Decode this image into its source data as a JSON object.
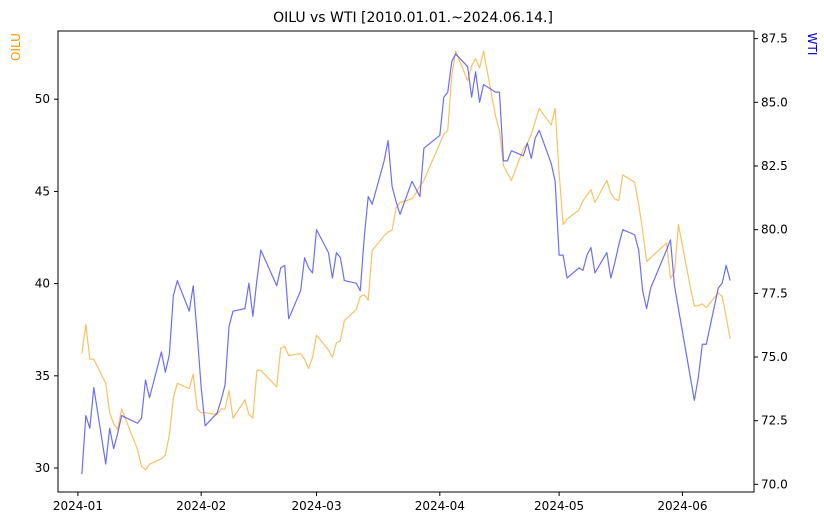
{
  "chart_data": {
    "type": "line",
    "title": "OILU vs WTI [2010.01.01.~2024.06.14.]",
    "xlabel": "",
    "x_ticks": [
      "2024-01",
      "2024-02",
      "2024-03",
      "2024-04",
      "2024-05",
      "2024-06"
    ],
    "x_range": [
      "2023-12-27",
      "2024-06-19"
    ],
    "left_axis": {
      "label": "OILU",
      "color": "#ff9900",
      "ylim": [
        28.7,
        53.7
      ],
      "ticks": [
        30,
        35,
        40,
        45,
        50
      ]
    },
    "right_axis": {
      "label": "WTI",
      "color": "#0000cc",
      "ylim": [
        69.7,
        87.8
      ],
      "ticks": [
        70.0,
        72.5,
        75.0,
        77.5,
        80.0,
        82.5,
        85.0,
        87.5
      ]
    },
    "grid": false,
    "series": [
      {
        "name": "OILU",
        "axis": "left",
        "color": "#f5a623",
        "points": [
          [
            "2024-01-02",
            36.2
          ],
          [
            "2024-01-03",
            37.8
          ],
          [
            "2024-01-04",
            35.9
          ],
          [
            "2024-01-05",
            35.9
          ],
          [
            "2024-01-08",
            34.6
          ],
          [
            "2024-01-09",
            33.0
          ],
          [
            "2024-01-10",
            32.4
          ],
          [
            "2024-01-11",
            32.1
          ],
          [
            "2024-01-12",
            33.2
          ],
          [
            "2024-01-16",
            31.0
          ],
          [
            "2024-01-17",
            30.1
          ],
          [
            "2024-01-18",
            29.9
          ],
          [
            "2024-01-19",
            30.2
          ],
          [
            "2024-01-22",
            30.5
          ],
          [
            "2024-01-23",
            30.7
          ],
          [
            "2024-01-24",
            31.8
          ],
          [
            "2024-01-25",
            33.8
          ],
          [
            "2024-01-26",
            34.6
          ],
          [
            "2024-01-29",
            34.3
          ],
          [
            "2024-01-30",
            35.1
          ],
          [
            "2024-01-31",
            33.2
          ],
          [
            "2024-02-01",
            33.0
          ],
          [
            "2024-02-02",
            33.0
          ],
          [
            "2024-02-05",
            32.9
          ],
          [
            "2024-02-06",
            33.2
          ],
          [
            "2024-02-07",
            33.2
          ],
          [
            "2024-02-08",
            34.2
          ],
          [
            "2024-02-09",
            32.7
          ],
          [
            "2024-02-12",
            33.7
          ],
          [
            "2024-02-13",
            32.9
          ],
          [
            "2024-02-14",
            32.7
          ],
          [
            "2024-02-15",
            35.3
          ],
          [
            "2024-02-16",
            35.3
          ],
          [
            "2024-02-20",
            34.4
          ],
          [
            "2024-02-21",
            36.5
          ],
          [
            "2024-02-22",
            36.6
          ],
          [
            "2024-02-23",
            36.1
          ],
          [
            "2024-02-26",
            36.2
          ],
          [
            "2024-02-27",
            35.9
          ],
          [
            "2024-02-28",
            35.4
          ],
          [
            "2024-02-29",
            36.0
          ],
          [
            "2024-03-01",
            37.2
          ],
          [
            "2024-03-04",
            36.4
          ],
          [
            "2024-03-05",
            36.0
          ],
          [
            "2024-03-06",
            36.8
          ],
          [
            "2024-03-07",
            36.9
          ],
          [
            "2024-03-08",
            38.0
          ],
          [
            "2024-03-11",
            38.6
          ],
          [
            "2024-03-12",
            39.3
          ],
          [
            "2024-03-13",
            39.4
          ],
          [
            "2024-03-14",
            39.1
          ],
          [
            "2024-03-15",
            41.8
          ],
          [
            "2024-03-18",
            42.6
          ],
          [
            "2024-03-19",
            42.8
          ],
          [
            "2024-03-20",
            42.9
          ],
          [
            "2024-03-21",
            44.1
          ],
          [
            "2024-03-22",
            44.4
          ],
          [
            "2024-03-25",
            44.6
          ],
          [
            "2024-03-26",
            44.9
          ],
          [
            "2024-03-27",
            45.3
          ],
          [
            "2024-03-28",
            45.6
          ],
          [
            "2024-04-01",
            47.6
          ],
          [
            "2024-04-02",
            48.1
          ],
          [
            "2024-04-03",
            48.3
          ],
          [
            "2024-04-04",
            51.3
          ],
          [
            "2024-04-05",
            52.6
          ],
          [
            "2024-04-08",
            51.0
          ],
          [
            "2024-04-09",
            51.8
          ],
          [
            "2024-04-10",
            52.2
          ],
          [
            "2024-04-11",
            51.7
          ],
          [
            "2024-04-12",
            52.6
          ],
          [
            "2024-04-15",
            49.1
          ],
          [
            "2024-04-16",
            48.3
          ],
          [
            "2024-04-17",
            46.4
          ],
          [
            "2024-04-18",
            46.0
          ],
          [
            "2024-04-19",
            45.6
          ],
          [
            "2024-04-22",
            47.3
          ],
          [
            "2024-04-23",
            47.6
          ],
          [
            "2024-04-24",
            48.1
          ],
          [
            "2024-04-25",
            48.8
          ],
          [
            "2024-04-26",
            49.5
          ],
          [
            "2024-04-29",
            48.6
          ],
          [
            "2024-04-30",
            49.5
          ],
          [
            "2024-05-01",
            46.0
          ],
          [
            "2024-05-02",
            43.2
          ],
          [
            "2024-05-03",
            43.5
          ],
          [
            "2024-05-06",
            44.0
          ],
          [
            "2024-05-07",
            44.5
          ],
          [
            "2024-05-08",
            44.8
          ],
          [
            "2024-05-09",
            45.1
          ],
          [
            "2024-05-10",
            44.4
          ],
          [
            "2024-05-13",
            45.6
          ],
          [
            "2024-05-14",
            44.9
          ],
          [
            "2024-05-15",
            44.6
          ],
          [
            "2024-05-16",
            44.5
          ],
          [
            "2024-05-17",
            45.9
          ],
          [
            "2024-05-20",
            45.5
          ],
          [
            "2024-05-21",
            44.3
          ],
          [
            "2024-05-22",
            42.9
          ],
          [
            "2024-05-23",
            41.2
          ],
          [
            "2024-05-24",
            41.4
          ],
          [
            "2024-05-28",
            42.2
          ],
          [
            "2024-05-29",
            40.3
          ],
          [
            "2024-05-30",
            40.6
          ],
          [
            "2024-05-31",
            43.2
          ],
          [
            "2024-06-03",
            39.8
          ],
          [
            "2024-06-04",
            38.8
          ],
          [
            "2024-06-05",
            38.8
          ],
          [
            "2024-06-06",
            38.9
          ],
          [
            "2024-06-07",
            38.7
          ],
          [
            "2024-06-10",
            39.5
          ],
          [
            "2024-06-11",
            39.3
          ],
          [
            "2024-06-12",
            38.2
          ],
          [
            "2024-06-13",
            37.0
          ]
        ]
      },
      {
        "name": "WTI",
        "axis": "right",
        "color": "#5555ee",
        "points": [
          [
            "2024-01-02",
            70.4
          ],
          [
            "2024-01-03",
            72.7
          ],
          [
            "2024-01-04",
            72.2
          ],
          [
            "2024-01-05",
            73.8
          ],
          [
            "2024-01-08",
            70.8
          ],
          [
            "2024-01-09",
            72.2
          ],
          [
            "2024-01-10",
            71.4
          ],
          [
            "2024-01-11",
            72.0
          ],
          [
            "2024-01-12",
            72.7
          ],
          [
            "2024-01-16",
            72.4
          ],
          [
            "2024-01-17",
            72.6
          ],
          [
            "2024-01-18",
            74.1
          ],
          [
            "2024-01-19",
            73.4
          ],
          [
            "2024-01-22",
            75.2
          ],
          [
            "2024-01-23",
            74.4
          ],
          [
            "2024-01-24",
            75.1
          ],
          [
            "2024-01-25",
            77.4
          ],
          [
            "2024-01-26",
            78.0
          ],
          [
            "2024-01-29",
            76.8
          ],
          [
            "2024-01-30",
            77.8
          ],
          [
            "2024-01-31",
            75.9
          ],
          [
            "2024-02-01",
            73.8
          ],
          [
            "2024-02-02",
            72.3
          ],
          [
            "2024-02-05",
            72.8
          ],
          [
            "2024-02-06",
            73.3
          ],
          [
            "2024-02-07",
            73.9
          ],
          [
            "2024-02-08",
            76.2
          ],
          [
            "2024-02-09",
            76.8
          ],
          [
            "2024-02-12",
            76.9
          ],
          [
            "2024-02-13",
            77.9
          ],
          [
            "2024-02-14",
            76.6
          ],
          [
            "2024-02-15",
            78.0
          ],
          [
            "2024-02-16",
            79.2
          ],
          [
            "2024-02-20",
            77.8
          ],
          [
            "2024-02-21",
            78.5
          ],
          [
            "2024-02-22",
            78.6
          ],
          [
            "2024-02-23",
            76.5
          ],
          [
            "2024-02-26",
            77.6
          ],
          [
            "2024-02-27",
            78.9
          ],
          [
            "2024-02-28",
            78.5
          ],
          [
            "2024-02-29",
            78.3
          ],
          [
            "2024-03-01",
            80.0
          ],
          [
            "2024-03-04",
            79.1
          ],
          [
            "2024-03-05",
            78.1
          ],
          [
            "2024-03-06",
            79.1
          ],
          [
            "2024-03-07",
            78.9
          ],
          [
            "2024-03-08",
            78.0
          ],
          [
            "2024-03-11",
            77.9
          ],
          [
            "2024-03-12",
            77.6
          ],
          [
            "2024-03-13",
            79.7
          ],
          [
            "2024-03-14",
            81.3
          ],
          [
            "2024-03-15",
            81.0
          ],
          [
            "2024-03-18",
            82.7
          ],
          [
            "2024-03-19",
            83.5
          ],
          [
            "2024-03-20",
            81.7
          ],
          [
            "2024-03-21",
            81.1
          ],
          [
            "2024-03-22",
            80.6
          ],
          [
            "2024-03-25",
            81.9
          ],
          [
            "2024-03-26",
            81.6
          ],
          [
            "2024-03-27",
            81.3
          ],
          [
            "2024-03-28",
            83.2
          ],
          [
            "2024-04-01",
            83.7
          ],
          [
            "2024-04-02",
            85.2
          ],
          [
            "2024-04-03",
            85.4
          ],
          [
            "2024-04-04",
            86.6
          ],
          [
            "2024-04-05",
            86.9
          ],
          [
            "2024-04-08",
            86.4
          ],
          [
            "2024-04-09",
            85.2
          ],
          [
            "2024-04-10",
            86.2
          ],
          [
            "2024-04-11",
            85.0
          ],
          [
            "2024-04-12",
            85.7
          ],
          [
            "2024-04-15",
            85.4
          ],
          [
            "2024-04-16",
            85.4
          ],
          [
            "2024-04-17",
            82.7
          ],
          [
            "2024-04-18",
            82.7
          ],
          [
            "2024-04-19",
            83.1
          ],
          [
            "2024-04-22",
            82.9
          ],
          [
            "2024-04-23",
            83.4
          ],
          [
            "2024-04-24",
            82.8
          ],
          [
            "2024-04-25",
            83.6
          ],
          [
            "2024-04-26",
            83.9
          ],
          [
            "2024-04-29",
            82.6
          ],
          [
            "2024-04-30",
            81.9
          ],
          [
            "2024-05-01",
            79.0
          ],
          [
            "2024-05-02",
            79.0
          ],
          [
            "2024-05-03",
            78.1
          ],
          [
            "2024-05-06",
            78.5
          ],
          [
            "2024-05-07",
            78.4
          ],
          [
            "2024-05-08",
            79.0
          ],
          [
            "2024-05-09",
            79.3
          ],
          [
            "2024-05-10",
            78.3
          ],
          [
            "2024-05-13",
            79.1
          ],
          [
            "2024-05-14",
            78.1
          ],
          [
            "2024-05-15",
            78.7
          ],
          [
            "2024-05-16",
            79.4
          ],
          [
            "2024-05-17",
            80.0
          ],
          [
            "2024-05-20",
            79.8
          ],
          [
            "2024-05-21",
            79.2
          ],
          [
            "2024-05-22",
            77.6
          ],
          [
            "2024-05-23",
            76.9
          ],
          [
            "2024-05-24",
            77.7
          ],
          [
            "2024-05-28",
            79.2
          ],
          [
            "2024-05-29",
            79.6
          ],
          [
            "2024-05-30",
            77.8
          ],
          [
            "2024-05-31",
            76.9
          ],
          [
            "2024-06-03",
            74.2
          ],
          [
            "2024-06-04",
            73.3
          ],
          [
            "2024-06-05",
            74.2
          ],
          [
            "2024-06-06",
            75.5
          ],
          [
            "2024-06-07",
            75.5
          ],
          [
            "2024-06-10",
            77.7
          ],
          [
            "2024-06-11",
            77.9
          ],
          [
            "2024-06-12",
            78.6
          ],
          [
            "2024-06-13",
            78.0
          ]
        ]
      }
    ]
  }
}
